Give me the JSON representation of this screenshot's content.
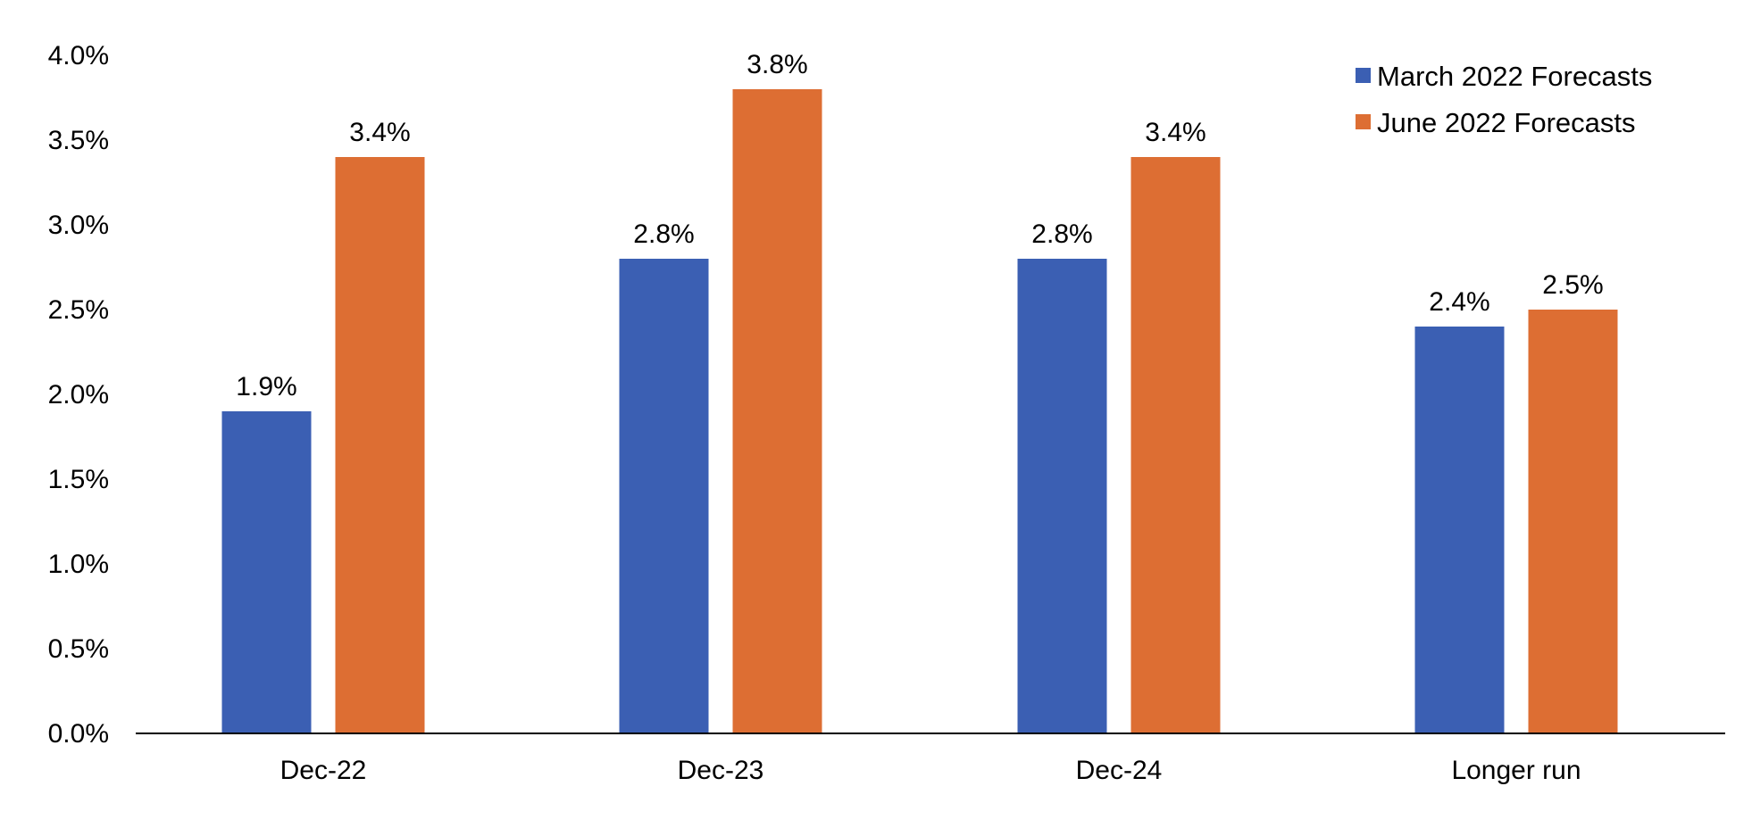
{
  "chart_data": {
    "type": "bar",
    "title": "",
    "xlabel": "",
    "ylabel": "",
    "ylim": [
      0,
      4.0
    ],
    "ytick_step": 0.5,
    "ytick_format": "percent_1dp",
    "grid": false,
    "legend_position": "top-right",
    "categories": [
      "Dec-22",
      "Dec-23",
      "Dec-24",
      "Longer run"
    ],
    "series": [
      {
        "name": "March 2022 Forecasts",
        "color": "#3b5fb3",
        "values": [
          1.9,
          2.8,
          2.8,
          2.4
        ],
        "labels": [
          "1.9%",
          "2.8%",
          "2.8%",
          "2.4%"
        ]
      },
      {
        "name": "June 2022 Forecasts",
        "color": "#dd6e33",
        "values": [
          3.4,
          3.8,
          3.4,
          2.5
        ],
        "labels": [
          "3.4%",
          "3.8%",
          "3.4%",
          "2.5%"
        ]
      }
    ],
    "yticks": [
      "0.0%",
      "0.5%",
      "1.0%",
      "1.5%",
      "2.0%",
      "2.5%",
      "3.0%",
      "3.5%",
      "4.0%"
    ]
  }
}
